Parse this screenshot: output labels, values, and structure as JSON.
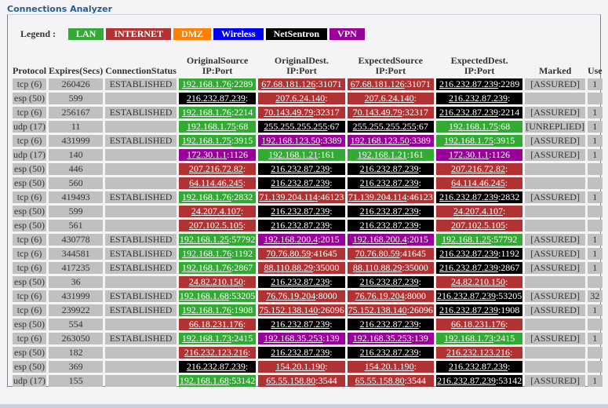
{
  "title": "Connections Analyzer",
  "legend": {
    "label": "Legend :",
    "items": [
      {
        "name": "LAN",
        "color": "#33aa33"
      },
      {
        "name": "INTERNET",
        "color": "#b03232"
      },
      {
        "name": "DMZ",
        "color": "#ff8000"
      },
      {
        "name": "Wireless",
        "color": "#0000ff"
      },
      {
        "name": "NetSentron",
        "color": "#000000"
      },
      {
        "name": "VPN",
        "color": "#990099"
      }
    ]
  },
  "columns": [
    "Protocol",
    "Expires(Secs)",
    "ConnectionStatus",
    "OriginalSource\nIP:Port",
    "OriginalDest.\nIP:Port",
    "ExpectedSource\nIP:Port",
    "ExpectedDest.\nIP:Port",
    "Marked",
    "Use"
  ],
  "rows": [
    {
      "protocol": "tcp (6)",
      "expires": "260426",
      "status": "ESTABLISHED",
      "ips": [
        [
          "192.168.1.76",
          ":2289",
          "LAN"
        ],
        [
          "67.68.181.126",
          ":31071",
          "INTERNET"
        ],
        [
          "67.68.181.126",
          ":31071",
          "INTERNET"
        ],
        [
          "216.232.87.239",
          ":2289",
          "NetSentron"
        ]
      ],
      "marked": "[ASSURED]",
      "use": "1"
    },
    {
      "protocol": "esp (50)",
      "expires": "599",
      "status": "",
      "ips": [
        [
          "216.232.87.239",
          ":",
          "NetSentron"
        ],
        [
          "207.6.24.140",
          ":",
          "INTERNET"
        ],
        [
          "207.6.24.140",
          ":",
          "INTERNET"
        ],
        [
          "216.232.87.239",
          ":",
          "NetSentron"
        ]
      ],
      "marked": "",
      "use": ""
    },
    {
      "protocol": "tcp (6)",
      "expires": "256167",
      "status": "ESTABLISHED",
      "ips": [
        [
          "192.168.1.76",
          ":2214",
          "LAN"
        ],
        [
          "70.143.49.79",
          ":32317",
          "INTERNET"
        ],
        [
          "70.143.49.79",
          ":32317",
          "INTERNET"
        ],
        [
          "216.232.87.239",
          ":2214",
          "NetSentron"
        ]
      ],
      "marked": "[ASSURED]",
      "use": "1"
    },
    {
      "protocol": "udp (17)",
      "expires": "11",
      "status": "",
      "ips": [
        [
          "192.168.1.75",
          ":68",
          "LAN"
        ],
        [
          "255.255.255.255",
          ":67",
          "NetSentron"
        ],
        [
          "255.255.255.255",
          ":67",
          "NetSentron"
        ],
        [
          "192.168.1.75",
          ":68",
          "LAN"
        ]
      ],
      "marked": "[UNREPLIED]",
      "use": "1"
    },
    {
      "protocol": "tcp (6)",
      "expires": "431999",
      "status": "ESTABLISHED",
      "ips": [
        [
          "192.168.1.75",
          ":3915",
          "LAN"
        ],
        [
          "192.168.123.50",
          ":3389",
          "VPN"
        ],
        [
          "192.168.123.50",
          ":3389",
          "VPN"
        ],
        [
          "192.168.1.75",
          ":3915",
          "LAN"
        ]
      ],
      "marked": "[ASSURED]",
      "use": "1"
    },
    {
      "protocol": "udp (17)",
      "expires": "140",
      "status": "",
      "ips": [
        [
          "172.30.1.1",
          ":1126",
          "VPN"
        ],
        [
          "192.168.1.21",
          ":161",
          "LAN"
        ],
        [
          "192.168.1.21",
          ":161",
          "LAN"
        ],
        [
          "172.30.1.1",
          ":1126",
          "VPN"
        ]
      ],
      "marked": "[ASSURED]",
      "use": "1"
    },
    {
      "protocol": "esp (50)",
      "expires": "446",
      "status": "",
      "ips": [
        [
          "207.216.72.82",
          ":",
          "INTERNET"
        ],
        [
          "216.232.87.239",
          ":",
          "NetSentron"
        ],
        [
          "216.232.87.239",
          ":",
          "NetSentron"
        ],
        [
          "207.216.72.82",
          ":",
          "INTERNET"
        ]
      ],
      "marked": "",
      "use": ""
    },
    {
      "protocol": "esp (50)",
      "expires": "560",
      "status": "",
      "ips": [
        [
          "64.114.46.245",
          ":",
          "INTERNET"
        ],
        [
          "216.232.87.239",
          ":",
          "NetSentron"
        ],
        [
          "216.232.87.239",
          ":",
          "NetSentron"
        ],
        [
          "64.114.46.245",
          ":",
          "INTERNET"
        ]
      ],
      "marked": "",
      "use": ""
    },
    {
      "protocol": "tcp (6)",
      "expires": "419493",
      "status": "ESTABLISHED",
      "ips": [
        [
          "192.168.1.76",
          ":2832",
          "LAN"
        ],
        [
          "71.139.204.114",
          ":46123",
          "INTERNET"
        ],
        [
          "71.139.204.114",
          ":46123",
          "INTERNET"
        ],
        [
          "216.232.87.239",
          ":2832",
          "NetSentron"
        ]
      ],
      "marked": "[ASSURED]",
      "use": "1"
    },
    {
      "protocol": "esp (50)",
      "expires": "599",
      "status": "",
      "ips": [
        [
          "24.207.4.107",
          ":",
          "INTERNET"
        ],
        [
          "216.232.87.239",
          ":",
          "NetSentron"
        ],
        [
          "216.232.87.239",
          ":",
          "NetSentron"
        ],
        [
          "24.207.4.107",
          ":",
          "INTERNET"
        ]
      ],
      "marked": "",
      "use": ""
    },
    {
      "protocol": "esp (50)",
      "expires": "561",
      "status": "",
      "ips": [
        [
          "207.102.5.105",
          ":",
          "INTERNET"
        ],
        [
          "216.232.87.239",
          ":",
          "NetSentron"
        ],
        [
          "216.232.87.239",
          ":",
          "NetSentron"
        ],
        [
          "207.102.5.105",
          ":",
          "INTERNET"
        ]
      ],
      "marked": "",
      "use": ""
    },
    {
      "protocol": "tcp (6)",
      "expires": "430778",
      "status": "ESTABLISHED",
      "ips": [
        [
          "192.168.1.25",
          ":57792",
          "LAN"
        ],
        [
          "192.168.200.4",
          ":2015",
          "VPN"
        ],
        [
          "192.168.200.4",
          ":2015",
          "VPN"
        ],
        [
          "192.168.1.25",
          ":57792",
          "LAN"
        ]
      ],
      "marked": "[ASSURED]",
      "use": "1"
    },
    {
      "protocol": "tcp (6)",
      "expires": "344581",
      "status": "ESTABLISHED",
      "ips": [
        [
          "192.168.1.76",
          ":1192",
          "LAN"
        ],
        [
          "70.76.80.59",
          ":41645",
          "INTERNET"
        ],
        [
          "70.76.80.59",
          ":41645",
          "INTERNET"
        ],
        [
          "216.232.87.239",
          ":1192",
          "NetSentron"
        ]
      ],
      "marked": "[ASSURED]",
      "use": "1"
    },
    {
      "protocol": "tcp (6)",
      "expires": "417235",
      "status": "ESTABLISHED",
      "ips": [
        [
          "192.168.1.76",
          ":2867",
          "LAN"
        ],
        [
          "88.110.88.29",
          ":35000",
          "INTERNET"
        ],
        [
          "88.110.88.29",
          ":35000",
          "INTERNET"
        ],
        [
          "216.232.87.239",
          ":2867",
          "NetSentron"
        ]
      ],
      "marked": "[ASSURED]",
      "use": "1"
    },
    {
      "protocol": "esp (50)",
      "expires": "36",
      "status": "",
      "ips": [
        [
          "24.82.210.150",
          ":",
          "INTERNET"
        ],
        [
          "216.232.87.239",
          ":",
          "NetSentron"
        ],
        [
          "216.232.87.239",
          ":",
          "NetSentron"
        ],
        [
          "24.82.210.150",
          ":",
          "INTERNET"
        ]
      ],
      "marked": "",
      "use": ""
    },
    {
      "protocol": "tcp (6)",
      "expires": "431999",
      "status": "ESTABLISHED",
      "ips": [
        [
          "192.168.1.68",
          ":53205",
          "LAN"
        ],
        [
          "76.76.19.204",
          ":8000",
          "INTERNET"
        ],
        [
          "76.76.19.204",
          ":8000",
          "INTERNET"
        ],
        [
          "216.232.87.239",
          ":53205",
          "NetSentron"
        ]
      ],
      "marked": "[ASSURED]",
      "use": "32"
    },
    {
      "protocol": "tcp (6)",
      "expires": "239922",
      "status": "ESTABLISHED",
      "ips": [
        [
          "192.168.1.76",
          ":1908",
          "LAN"
        ],
        [
          "75.152.138.140",
          ":26096",
          "INTERNET"
        ],
        [
          "75.152.138.140",
          ":26096",
          "INTERNET"
        ],
        [
          "216.232.87.239",
          ":1908",
          "NetSentron"
        ]
      ],
      "marked": "[ASSURED]",
      "use": "1"
    },
    {
      "protocol": "esp (50)",
      "expires": "554",
      "status": "",
      "ips": [
        [
          "66.18.231.176",
          ":",
          "INTERNET"
        ],
        [
          "216.232.87.239",
          ":",
          "NetSentron"
        ],
        [
          "216.232.87.239",
          ":",
          "NetSentron"
        ],
        [
          "66.18.231.176",
          ":",
          "INTERNET"
        ]
      ],
      "marked": "",
      "use": ""
    },
    {
      "protocol": "tcp (6)",
      "expires": "263050",
      "status": "ESTABLISHED",
      "ips": [
        [
          "192.168.1.73",
          ":2415",
          "LAN"
        ],
        [
          "192.168.35.253",
          ":139",
          "VPN"
        ],
        [
          "192.168.35.253",
          ":139",
          "VPN"
        ],
        [
          "192.168.1.73",
          ":2415",
          "LAN"
        ]
      ],
      "marked": "[ASSURED]",
      "use": "1"
    },
    {
      "protocol": "esp (50)",
      "expires": "182",
      "status": "",
      "ips": [
        [
          "216.232.123.216",
          ":",
          "INTERNET"
        ],
        [
          "216.232.87.239",
          ":",
          "NetSentron"
        ],
        [
          "216.232.87.239",
          ":",
          "NetSentron"
        ],
        [
          "216.232.123.216",
          ":",
          "INTERNET"
        ]
      ],
      "marked": "",
      "use": ""
    },
    {
      "protocol": "esp (50)",
      "expires": "369",
      "status": "",
      "ips": [
        [
          "216.232.87.239",
          ":",
          "NetSentron"
        ],
        [
          "154.20.1.190",
          ":",
          "INTERNET"
        ],
        [
          "154.20.1.190",
          ":",
          "INTERNET"
        ],
        [
          "216.232.87.239",
          ":",
          "NetSentron"
        ]
      ],
      "marked": "",
      "use": ""
    },
    {
      "protocol": "udp (17)",
      "expires": "155",
      "status": "",
      "ips": [
        [
          "192.168.1.68",
          ":53142",
          "LAN"
        ],
        [
          "65.55.158.80",
          ":3544",
          "INTERNET"
        ],
        [
          "65.55.158.80",
          ":3544",
          "INTERNET"
        ],
        [
          "216.232.87.239",
          ":53142",
          "NetSentron"
        ]
      ],
      "marked": "[ASSURED]",
      "use": "1"
    }
  ]
}
